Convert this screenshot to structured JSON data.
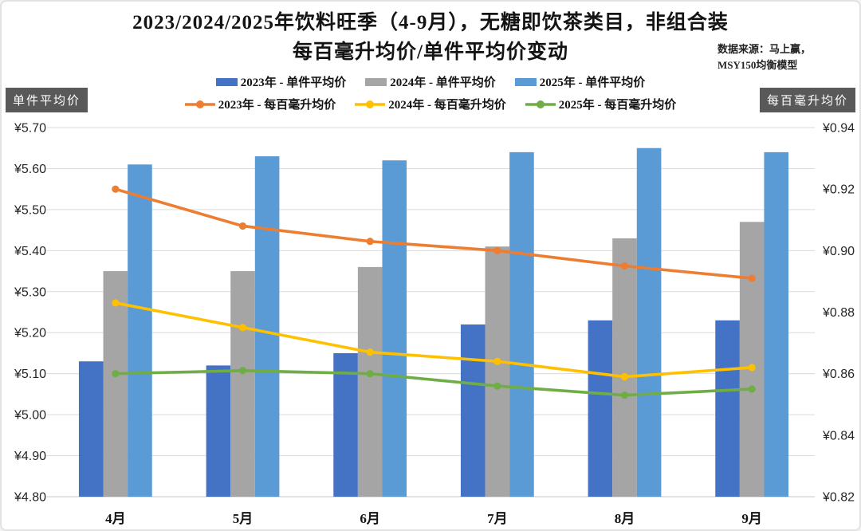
{
  "header": {
    "title_line1": "2023/2024/2025年饮料旺季（4-9月），无糖即饮茶类目，非组合装",
    "title_line2": "每百毫升均价/单件平均价变动",
    "source_line1": "数据来源：马上赢，",
    "source_line2": "MSY150均衡模型"
  },
  "axis_badges": {
    "left": "单件平均价",
    "right": "每百毫升均价",
    "bg_color": "#595959",
    "text_color": "#FFFFFF"
  },
  "chart_data": {
    "type": "bar+line dual-axis combo",
    "categories": [
      "4月",
      "5月",
      "6月",
      "7月",
      "8月",
      "9月"
    ],
    "bar_series": [
      {
        "name": "2023年 - 单件平均价",
        "axis": "left",
        "color": "#4472C4",
        "values": [
          5.13,
          5.12,
          5.15,
          5.22,
          5.23,
          5.23
        ]
      },
      {
        "name": "2024年 - 单件平均价",
        "axis": "left",
        "color": "#A5A5A5",
        "values": [
          5.35,
          5.35,
          5.36,
          5.41,
          5.43,
          5.47
        ]
      },
      {
        "name": "2025年 - 单件平均价",
        "axis": "left",
        "color": "#5B9BD5",
        "values": [
          5.61,
          5.63,
          5.62,
          5.64,
          5.65,
          5.64
        ]
      }
    ],
    "line_series": [
      {
        "name": "2023年 - 每百毫升均价",
        "axis": "right",
        "color": "#ED7D31",
        "values": [
          0.92,
          0.908,
          0.903,
          0.9,
          0.895,
          0.891
        ]
      },
      {
        "name": "2024年 - 每百毫升均价",
        "axis": "right",
        "color": "#FFC000",
        "values": [
          0.883,
          0.875,
          0.867,
          0.864,
          0.859,
          0.862
        ]
      },
      {
        "name": "2025年 - 每百毫升均价",
        "axis": "right",
        "color": "#70AD47",
        "values": [
          0.86,
          0.861,
          0.86,
          0.856,
          0.853,
          0.855
        ]
      }
    ],
    "left_axis": {
      "title": "单件平均价",
      "min": 4.8,
      "max": 5.7,
      "step": 0.1,
      "prefix": "¥"
    },
    "right_axis": {
      "title": "每百毫升均价",
      "min": 0.82,
      "max": 0.94,
      "step": 0.02,
      "prefix": "¥"
    },
    "grid": "horizontal-only",
    "gridline_color": "#DADADA",
    "legend_position": "top"
  }
}
